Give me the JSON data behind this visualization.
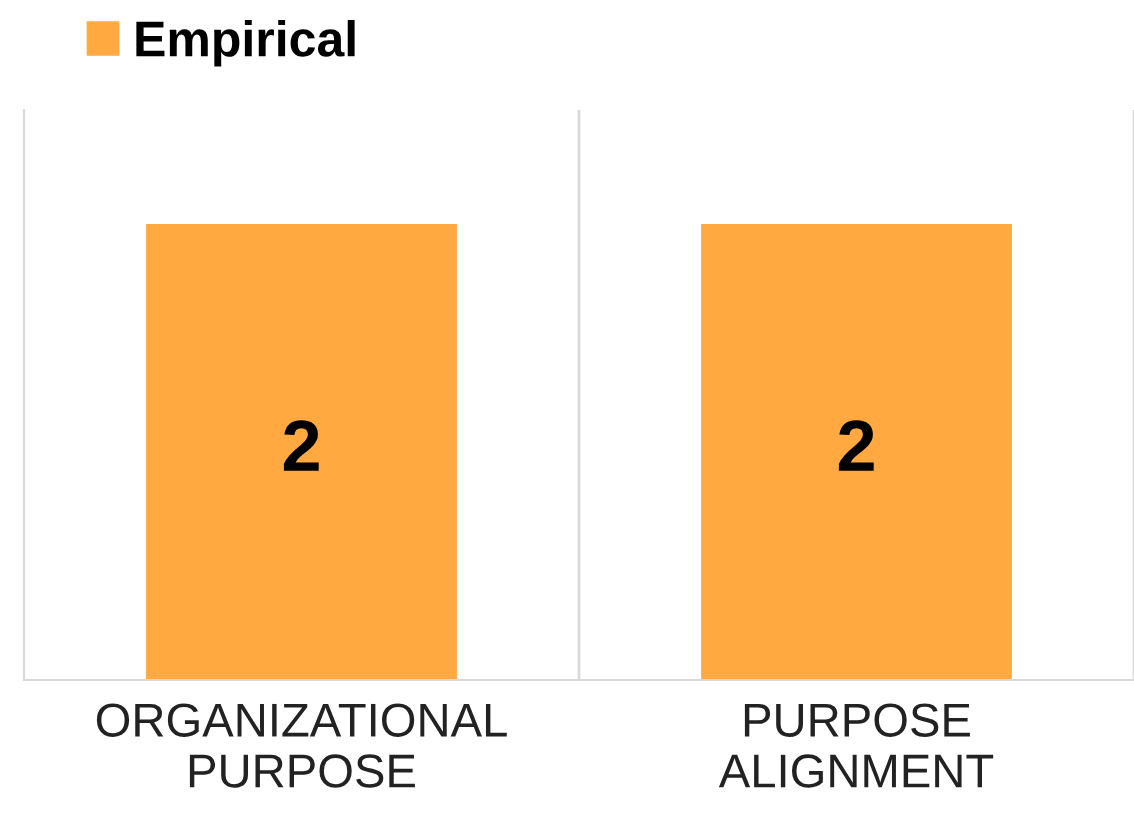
{
  "chart_data": {
    "type": "bar",
    "categories": [
      "ORGANIZATIONAL\nPURPOSE",
      "PURPOSE\nALIGNMENT"
    ],
    "series": [
      {
        "name": "Empirical",
        "color": "#ffa940",
        "values": [
          2,
          2
        ]
      }
    ],
    "ylim": [
      0,
      2.5
    ],
    "data_labels": true,
    "legend": "top left",
    "grid": false
  }
}
